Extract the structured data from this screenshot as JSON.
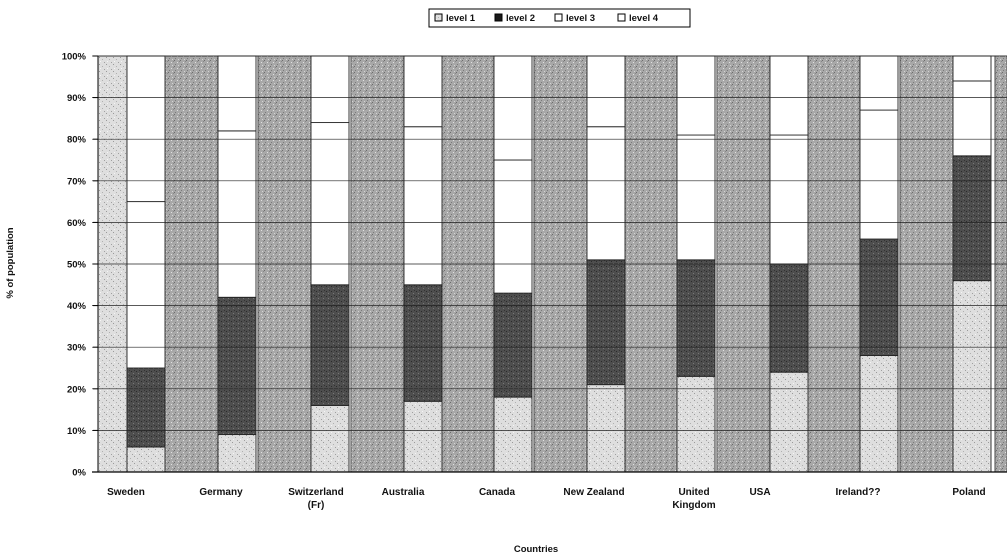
{
  "chart_data": {
    "type": "bar",
    "stacked": true,
    "title": "",
    "xlabel": "Countries",
    "ylabel": "% of population",
    "ylim": [
      0,
      100
    ],
    "yticks": [
      "0%",
      "10%",
      "20%",
      "30%",
      "40%",
      "50%",
      "60%",
      "70%",
      "80%",
      "90%",
      "100%"
    ],
    "grid": true,
    "legend": {
      "position": "top-center",
      "entries": [
        "level 1",
        "level 2",
        "level 3",
        "level 4"
      ]
    },
    "categories": [
      "Sweden",
      "Germany",
      "Switzerland (Fr)",
      "Australia",
      "Canada",
      "New Zealand",
      "United Kingdom",
      "USA",
      "Ireland??",
      "Poland"
    ],
    "category_labels": [
      [
        "Sweden"
      ],
      [
        "Germany"
      ],
      [
        "Switzerland",
        "(Fr)"
      ],
      [
        "Australia"
      ],
      [
        "Canada"
      ],
      [
        "New Zealand"
      ],
      [
        "United",
        "Kingdom"
      ],
      [
        "USA"
      ],
      [
        "Ireland??"
      ],
      [
        "Poland"
      ]
    ],
    "series": [
      {
        "name": "level 1",
        "values": [
          6,
          9,
          16,
          17,
          18,
          21,
          23,
          24,
          28,
          46
        ]
      },
      {
        "name": "level 2",
        "values": [
          19,
          33,
          29,
          28,
          25,
          30,
          28,
          26,
          28,
          30
        ]
      },
      {
        "name": "level 3",
        "values": [
          40,
          40,
          39,
          38,
          32,
          32,
          30,
          31,
          31,
          18
        ]
      },
      {
        "name": "level 4",
        "values": [
          35,
          18,
          16,
          17,
          25,
          17,
          19,
          19,
          13,
          6
        ]
      }
    ],
    "colors": {
      "level 1": "#f4f4f4",
      "level 2": "#4a4a4a",
      "level 3": "#ffffff",
      "level 4": "#ffffff",
      "background_tile": "#a9a9a9",
      "background_tile_light": "#d8d8d8"
    }
  }
}
